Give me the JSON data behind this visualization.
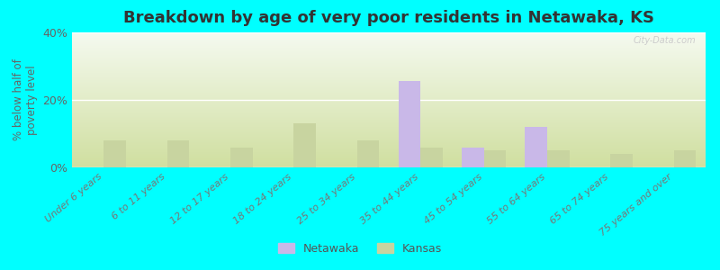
{
  "title": "Breakdown by age of very poor residents in Netawaka, KS",
  "ylabel": "% below half of\npoverty level",
  "categories": [
    "Under 6 years",
    "6 to 11 years",
    "12 to 17 years",
    "18 to 24 years",
    "25 to 34 years",
    "35 to 44 years",
    "45 to 54 years",
    "55 to 64 years",
    "65 to 74 years",
    "75 years and over"
  ],
  "netawaka_values": [
    0,
    0,
    0,
    0,
    0,
    25.5,
    6.0,
    12.0,
    0,
    0
  ],
  "kansas_values": [
    8.0,
    8.0,
    6.0,
    13.0,
    8.0,
    6.0,
    5.0,
    5.0,
    4.0,
    5.0
  ],
  "netawaka_color": "#c9b8e8",
  "kansas_color": "#c8d4a0",
  "background_color": "#00ffff",
  "grad_top": "#f5faf0",
  "grad_bottom": "#d0dfa0",
  "ylim": [
    0,
    40
  ],
  "yticks": [
    0,
    20,
    40
  ],
  "ytick_labels": [
    "0%",
    "20%",
    "40%"
  ],
  "bar_width": 0.35,
  "title_fontsize": 13,
  "legend_labels": [
    "Netawaka",
    "Kansas"
  ],
  "watermark": "City-Data.com"
}
